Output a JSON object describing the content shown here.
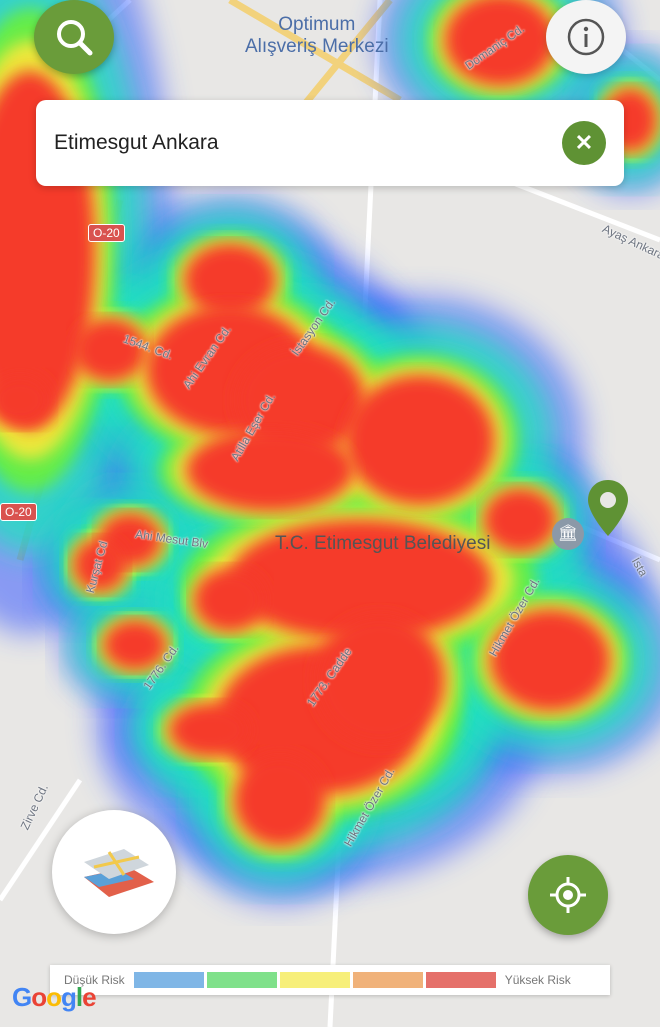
{
  "search": {
    "value": "Etimesgut Ankara"
  },
  "map": {
    "poi": [
      {
        "name": "Optimum Alışveriş Merkezi",
        "lines": [
          "Optimum",
          "Alışveriş Merkezi"
        ]
      },
      {
        "name": "T.C. Etimesgut Belediyesi"
      }
    ],
    "streets": [
      "1544. Cd.",
      "Ahi Evran Cd.",
      "İstasyon Cd.",
      "Atilla Eşer Cd.",
      "Ahi Mesut Blv",
      "Kurşat Cd",
      "1776. Cd.",
      "1773. Cadde",
      "Hikmet Özer Cd.",
      "Hikmet Özer Cd.",
      "Zirve Cd.",
      "Domaniç Cd.",
      "Ayaş Ankara",
      "İsta"
    ],
    "road_shields": [
      "O-20",
      "O-20"
    ],
    "attribution": "Google"
  },
  "legend": {
    "low": "Düşük Risk",
    "high": "Yüksek Risk",
    "colors": [
      "#7fb6e6",
      "#7fe18a",
      "#f7ef7a",
      "#f0b27a",
      "#e5706a"
    ]
  },
  "icons": {
    "search": "search-icon",
    "info": "info-icon",
    "clear": "close-icon",
    "locate": "crosshair-icon",
    "layers": "map-layers-icon",
    "pin": "map-pin-icon"
  }
}
